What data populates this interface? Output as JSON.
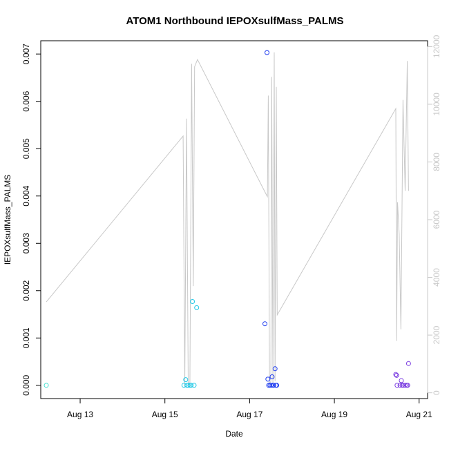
{
  "chart_data": {
    "type": "scatter",
    "title": "ATOM1 Northbound IEPOXsulfMass_PALMS",
    "xlabel": "Date",
    "ylabel": "IEPOXsulfMass_PALMS",
    "y2label": "",
    "xlim": [
      12.07,
      21.2
    ],
    "ylim": [
      -0.00028,
      0.00728
    ],
    "y2lim": [
      -200,
      12200
    ],
    "x_ticks": [
      13,
      15,
      17,
      19,
      21
    ],
    "x_tick_labels": [
      "Aug 13",
      "Aug 15",
      "Aug 17",
      "Aug 19",
      "Aug 21"
    ],
    "y_ticks": [
      0.0,
      0.001,
      0.002,
      0.003,
      0.004,
      0.005,
      0.006,
      0.007
    ],
    "y_tick_labels": [
      "0.000",
      "0.001",
      "0.002",
      "0.003",
      "0.004",
      "0.005",
      "0.006",
      "0.007"
    ],
    "y2_ticks": [
      0,
      2000,
      4000,
      6000,
      8000,
      10000,
      12000
    ],
    "y2_tick_labels": [
      "0",
      "2000",
      "4000",
      "6000",
      "8000",
      "10000",
      "12000"
    ],
    "grid": false,
    "legend": "none",
    "colors": {
      "altitude_line": "#c8c8c8",
      "axis": "#000000",
      "right_axis": "#c8c8c8",
      "flight_1": "#40e0d0",
      "flight_2": "#1ec8e6",
      "flight_3": "#1e3cf0",
      "flight_4": "#7a3ce0"
    },
    "series": [
      {
        "role": "altitude-line",
        "axis": "right",
        "color": "#c8c8c8",
        "x": [
          12.2,
          15.43,
          15.47,
          15.51,
          15.55,
          15.59,
          15.63,
          15.67,
          15.7,
          15.77,
          17.4,
          17.42,
          17.44,
          17.47,
          17.5,
          17.52,
          17.55,
          17.58,
          17.6,
          17.63,
          17.65,
          20.45,
          20.47,
          20.49,
          20.53,
          20.57,
          20.62,
          20.67,
          20.72,
          20.75
        ],
        "y": [
          3150,
          8900,
          200,
          9500,
          300,
          250,
          11400,
          3700,
          11300,
          11550,
          6850,
          6800,
          10300,
          300,
          400,
          10950,
          300,
          11800,
          400,
          10600,
          2700,
          9850,
          1800,
          6600,
          5500,
          2200,
          10150,
          7000,
          11500,
          7000
        ]
      },
      {
        "name": "flight_1",
        "color": "#40e0d0",
        "x": [
          12.2
        ],
        "y": [
          0.0
        ]
      },
      {
        "name": "flight_2",
        "color": "#1ec8e6",
        "x": [
          15.45,
          15.49,
          15.52,
          15.55,
          15.59,
          15.62,
          15.65,
          15.69,
          15.75
        ],
        "y": [
          0.0,
          0.00012,
          0.0,
          0.0,
          0.0,
          0.0,
          0.00177,
          0.0,
          0.00164
        ]
      },
      {
        "name": "flight_3",
        "color": "#1e3cf0",
        "x": [
          17.36,
          17.41,
          17.43,
          17.45,
          17.48,
          17.51,
          17.53,
          17.55,
          17.57,
          17.6,
          17.62,
          17.64
        ],
        "y": [
          0.0013,
          0.00703,
          0.00013,
          0.0,
          0.0,
          0.0,
          0.00018,
          0.0,
          0.0,
          0.00035,
          0.0,
          0.0
        ]
      },
      {
        "name": "flight_4",
        "color": "#7a3ce0",
        "x": [
          20.45,
          20.47,
          20.48,
          20.55,
          20.58,
          20.6,
          20.63,
          20.67,
          20.71,
          20.73,
          20.75
        ],
        "y": [
          0.00023,
          0.00021,
          0.0,
          0.0,
          0.0001,
          0.0,
          0.0,
          0.0,
          0.0,
          0.0,
          0.00046
        ]
      }
    ]
  }
}
